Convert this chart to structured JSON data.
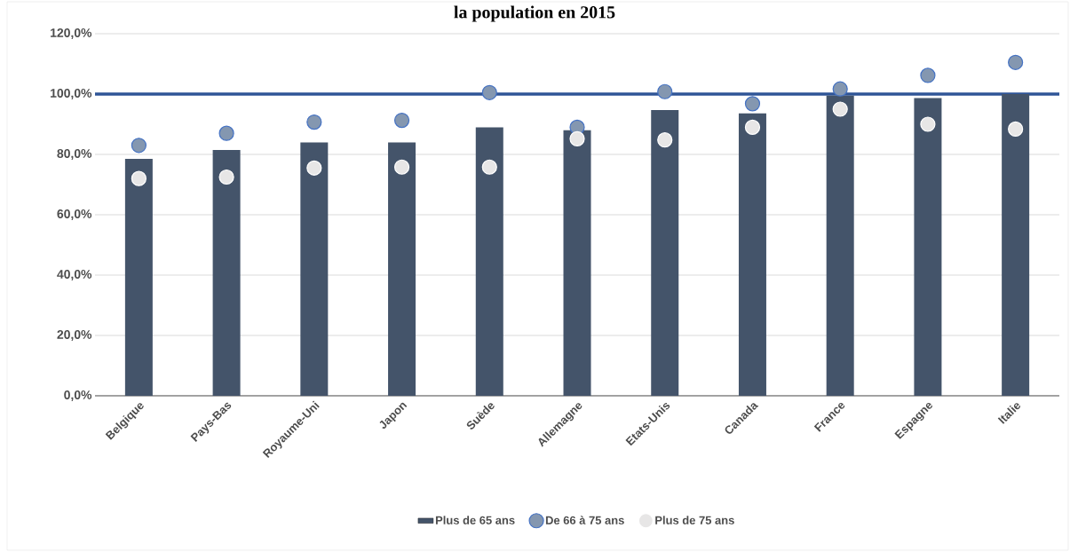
{
  "chart_data": {
    "type": "bar",
    "title": "la population en 2015",
    "categories": [
      "Belgique",
      "Pays-Bas",
      "Royaume-Uni",
      "Japon",
      "Suède",
      "Allemagne",
      "Etats-Unis",
      "Canada",
      "France",
      "Espagne",
      "Italie"
    ],
    "series": [
      {
        "name": "Plus de 65 ans",
        "color": "#44546a",
        "values": [
          78.5,
          81.5,
          84,
          84,
          89,
          88,
          94.7,
          93.6,
          99.5,
          98.7,
          100
        ]
      },
      {
        "name": "De 66 à 75 ans",
        "type": "scatter",
        "color": "#8497b0",
        "values": [
          83,
          87,
          90.7,
          91.3,
          100.5,
          89,
          100.8,
          96.8,
          101.7,
          106.2,
          110.5
        ]
      },
      {
        "name": "Plus de 75 ans",
        "type": "scatter",
        "color": "#e7e6e6",
        "values": [
          72,
          72.5,
          75.5,
          75.8,
          75.8,
          85.2,
          84.8,
          89,
          95,
          90,
          88.4
        ]
      }
    ],
    "ylim": [
      0,
      120
    ],
    "yticks": [
      {
        "value": 0,
        "label": "0,0%"
      },
      {
        "value": 20,
        "label": "20,0%"
      },
      {
        "value": 40,
        "label": "40,0%"
      },
      {
        "value": 60,
        "label": "60,0%"
      },
      {
        "value": 80,
        "label": "80,0%"
      },
      {
        "value": 100,
        "label": "100,0%"
      },
      {
        "value": 120,
        "label": "120,0%"
      }
    ],
    "ref_lines": [
      {
        "axis": "y",
        "value": 100,
        "color": "#2f5597"
      }
    ],
    "grid": "y",
    "legend": "bottom"
  }
}
